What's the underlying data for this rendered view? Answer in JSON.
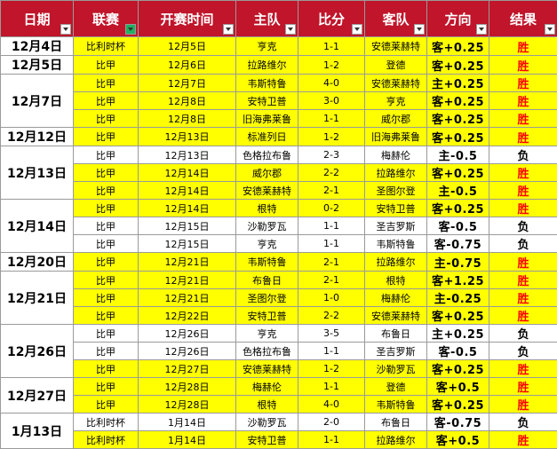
{
  "header": [
    "日期",
    "联赛",
    "开赛时间",
    "主队",
    "比分",
    "客队",
    "方向",
    "结果"
  ],
  "groups": [
    {
      "date": "12月4日",
      "rows": [
        {
          "cells": [
            "比利时杯",
            "12月5日",
            "亨克",
            "1-1",
            "安德莱赫特",
            "客+0.25",
            "胜"
          ],
          "color": "#ffff00",
          "result_color": "#ff0000"
        }
      ]
    },
    {
      "date": "12月5日",
      "rows": [
        {
          "cells": [
            "比甲",
            "12月6日",
            "拉路维尔",
            "1-2",
            "登德",
            "客+0.25",
            "胜"
          ],
          "color": "#ffff00",
          "result_color": "#ff0000"
        }
      ]
    },
    {
      "date": "12月7日",
      "rows": [
        {
          "cells": [
            "比甲",
            "12月7日",
            "韦斯特鲁",
            "4-0",
            "安德莱赫特",
            "主+0.25",
            "胜"
          ],
          "color": "#ffff00",
          "result_color": "#ff0000"
        },
        {
          "cells": [
            "比甲",
            "12月8日",
            "安特卫普",
            "3-0",
            "亨克",
            "客+0.25",
            "胜"
          ],
          "color": "#ffff00",
          "result_color": "#ff0000"
        },
        {
          "cells": [
            "比甲",
            "12月8日",
            "旧海弗莱鲁",
            "1-1",
            "威尔郡",
            "客+0.25",
            "胜"
          ],
          "color": "#ffff00",
          "result_color": "#ff0000"
        }
      ]
    },
    {
      "date": "12月12日",
      "rows": [
        {
          "cells": [
            "比甲",
            "12月13日",
            "标准列日",
            "1-2",
            "旧海弗莱鲁",
            "客+0.25",
            "胜"
          ],
          "color": "#ffff00",
          "result_color": "#ff0000"
        }
      ]
    },
    {
      "date": "12月13日",
      "rows": [
        {
          "cells": [
            "比甲",
            "12月13日",
            "色格拉布鲁",
            "2-3",
            "梅赫伦",
            "主-0.5",
            "负"
          ],
          "color": "#ffffff",
          "result_color": "#000000"
        },
        {
          "cells": [
            "比甲",
            "12月14日",
            "威尔郡",
            "2-2",
            "拉路维尔",
            "客+0.25",
            "胜"
          ],
          "color": "#ffff00",
          "result_color": "#ff0000"
        },
        {
          "cells": [
            "比甲",
            "12月14日",
            "安德莱赫特",
            "2-1",
            "圣图尔登",
            "主-0.5",
            "胜"
          ],
          "color": "#ffff00",
          "result_color": "#ff0000"
        }
      ]
    },
    {
      "date": "12月14日",
      "rows": [
        {
          "cells": [
            "比甲",
            "12月14日",
            "根特",
            "0-2",
            "安特卫普",
            "客+0.25",
            "胜"
          ],
          "color": "#ffff00",
          "result_color": "#ff0000"
        },
        {
          "cells": [
            "比甲",
            "12月15日",
            "沙勒罗瓦",
            "1-1",
            "圣吉罗斯",
            "客-0.5",
            "负"
          ],
          "color": "#ffffff",
          "result_color": "#000000"
        },
        {
          "cells": [
            "比甲",
            "12月15日",
            "亨克",
            "1-1",
            "韦斯特鲁",
            "客-0.75",
            "负"
          ],
          "color": "#ffffff",
          "result_color": "#000000"
        }
      ]
    },
    {
      "date": "12月20日",
      "rows": [
        {
          "cells": [
            "比甲",
            "12月21日",
            "韦斯特鲁",
            "2-1",
            "拉路维尔",
            "主-0.75",
            "胜"
          ],
          "color": "#ffff00",
          "result_color": "#ff0000"
        }
      ]
    },
    {
      "date": "12月21日",
      "rows": [
        {
          "cells": [
            "比甲",
            "12月21日",
            "布鲁日",
            "2-1",
            "根特",
            "客+1.25",
            "胜"
          ],
          "color": "#ffff00",
          "result_color": "#ff0000"
        },
        {
          "cells": [
            "比甲",
            "12月21日",
            "圣图尔登",
            "1-0",
            "梅赫伦",
            "主-0.25",
            "胜"
          ],
          "color": "#ffff00",
          "result_color": "#ff0000"
        },
        {
          "cells": [
            "比甲",
            "12月22日",
            "安特卫普",
            "2-2",
            "安德莱赫特",
            "客+0.25",
            "胜"
          ],
          "color": "#ffff00",
          "result_color": "#ff0000"
        }
      ]
    },
    {
      "date": "12月26日",
      "rows": [
        {
          "cells": [
            "比甲",
            "12月26日",
            "亨克",
            "3-5",
            "布鲁日",
            "主+0.25",
            "负"
          ],
          "color": "#ffffff",
          "result_color": "#000000"
        },
        {
          "cells": [
            "比甲",
            "12月26日",
            "色格拉布鲁",
            "1-1",
            "圣吉罗斯",
            "客-0.5",
            "负"
          ],
          "color": "#ffffff",
          "result_color": "#000000"
        },
        {
          "cells": [
            "比甲",
            "12月27日",
            "安德莱赫特",
            "1-2",
            "沙勒罗瓦",
            "客+0.25",
            "胜"
          ],
          "color": "#ffff00",
          "result_color": "#ff0000"
        }
      ]
    },
    {
      "date": "12月27日",
      "rows": [
        {
          "cells": [
            "比甲",
            "12月28日",
            "梅赫伦",
            "1-1",
            "登德",
            "客+0.5",
            "胜"
          ],
          "color": "#ffff00",
          "result_color": "#ff0000"
        },
        {
          "cells": [
            "比甲",
            "12月28日",
            "根特",
            "4-0",
            "韦斯特鲁",
            "客+0.25",
            "胜"
          ],
          "color": "#ffff00",
          "result_color": "#ff0000"
        }
      ]
    },
    {
      "date": "1月13日",
      "rows": [
        {
          "cells": [
            "比利时杯",
            "1月14日",
            "沙勒罗瓦",
            "2-0",
            "布鲁日",
            "客-0.75",
            "负"
          ],
          "color": "#ffffff",
          "result_color": "#000000"
        },
        {
          "cells": [
            "比利时杯",
            "1月14日",
            "安特卫普",
            "1-1",
            "拉路维尔",
            "客+0.5",
            "胜"
          ],
          "color": "#ffff00",
          "result_color": "#ff0000"
        }
      ]
    }
  ]
}
